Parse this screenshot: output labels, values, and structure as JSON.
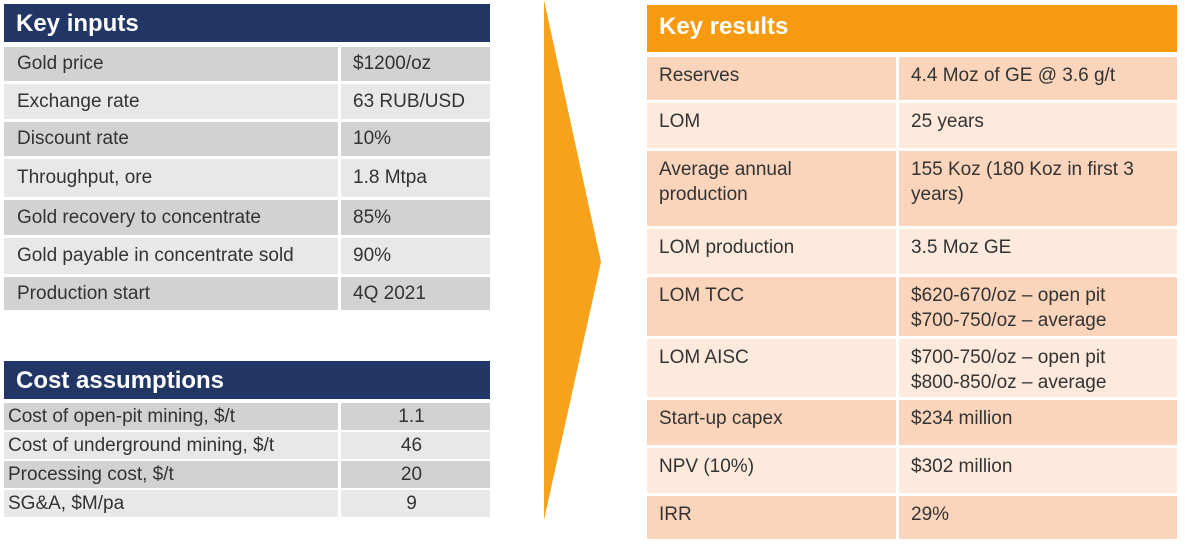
{
  "key_inputs": {
    "title": "Key inputs",
    "rows": [
      {
        "label": "Gold price",
        "value": "$1200/oz"
      },
      {
        "label": "Exchange rate",
        "value": "63 RUB/USD"
      },
      {
        "label": "Discount rate",
        "value": "10%"
      },
      {
        "label": "Throughput, ore",
        "value": "1.8 Mtpa"
      },
      {
        "label": "Gold recovery to concentrate",
        "value": "85%"
      },
      {
        "label": "Gold payable in concentrate sold",
        "value": "90%"
      },
      {
        "label": "Production start",
        "value": "4Q 2021"
      }
    ]
  },
  "cost_assumptions": {
    "title": "Cost assumptions",
    "rows": [
      {
        "label": "Cost of open-pit mining, $/t",
        "value": "1.1"
      },
      {
        "label": "Cost of underground mining, $/t",
        "value": "46"
      },
      {
        "label": "Processing cost, $/t",
        "value": "20"
      },
      {
        "label": "SG&A, $M/pa",
        "value": "9"
      }
    ]
  },
  "key_results": {
    "title": "Key results",
    "rows": [
      {
        "label": [
          "Reserves"
        ],
        "value": [
          "4.4 Moz of GE @ 3.6 g/t"
        ]
      },
      {
        "label": [
          "LOM"
        ],
        "value": [
          "25 years"
        ]
      },
      {
        "label": [
          "Average annual",
          "production"
        ],
        "value": [
          "155 Koz (180 Koz in first 3",
          "years)"
        ]
      },
      {
        "label": [
          "LOM production"
        ],
        "value": [
          "3.5 Moz GE"
        ]
      },
      {
        "label": [
          "LOM TCC"
        ],
        "value": [
          "$620-670/oz – open pit",
          "$700-750/oz – average"
        ]
      },
      {
        "label": [
          "LOM AISC"
        ],
        "value": [
          "$700-750/oz – open pit",
          "$800-850/oz – average"
        ]
      },
      {
        "label": [
          "Start-up capex"
        ],
        "value": [
          "$234 million"
        ]
      },
      {
        "label": [
          "NPV (10%)"
        ],
        "value": [
          "$302 million"
        ]
      },
      {
        "label": [
          "IRR"
        ],
        "value": [
          "29%"
        ]
      }
    ]
  },
  "colors": {
    "navy_header": "#213664",
    "orange_header": "#f89a10",
    "arrow": "#f7a21b",
    "grey_dark": "#d2d2d2",
    "grey_light": "#e8e8e8",
    "peach_dark": "#fad5bb",
    "peach_light": "#fdeadd"
  }
}
